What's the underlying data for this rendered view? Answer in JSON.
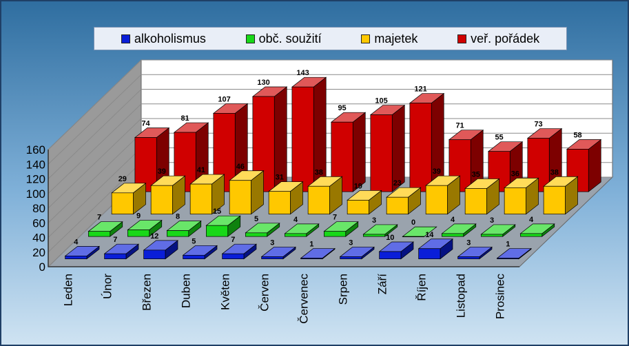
{
  "chart_data": {
    "type": "bar",
    "categories": [
      "Leden",
      "Únor",
      "Březen",
      "Duben",
      "Květen",
      "Červen",
      "Červenec",
      "Srpen",
      "Září",
      "Říjen",
      "Listopad",
      "Prosinec"
    ],
    "series": [
      {
        "name": "alkoholismus",
        "color": "#0a1ed8",
        "values": [
          4,
          7,
          12,
          5,
          7,
          3,
          1,
          3,
          10,
          14,
          3,
          1
        ]
      },
      {
        "name": "obč. soužití",
        "color": "#18d818",
        "values": [
          7,
          9,
          8,
          15,
          5,
          4,
          7,
          3,
          0,
          4,
          3,
          4
        ]
      },
      {
        "name": "majetek",
        "color": "#ffc800",
        "values": [
          29,
          39,
          41,
          46,
          31,
          38,
          19,
          23,
          39,
          35,
          36,
          38
        ]
      },
      {
        "name": "veř. pořádek",
        "color": "#d00000",
        "values": [
          74,
          81,
          107,
          130,
          143,
          95,
          105,
          121,
          71,
          55,
          73,
          58
        ]
      }
    ],
    "ylim": [
      0,
      160
    ],
    "yticks": [
      0,
      20,
      40,
      60,
      80,
      100,
      120,
      140,
      160
    ],
    "legend_position": "top",
    "grid": true
  }
}
